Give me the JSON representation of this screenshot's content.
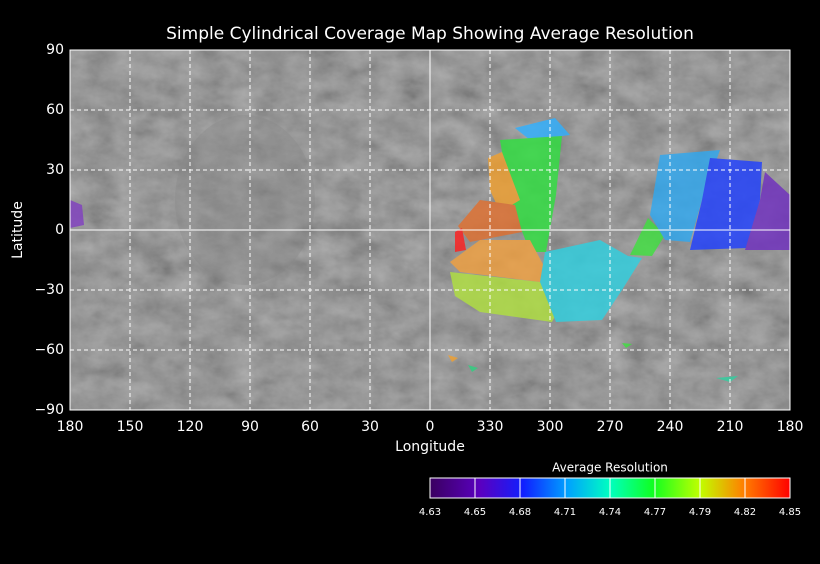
{
  "title": "Simple Cylindrical Coverage Map Showing Average Resolution",
  "x_label": "Longitude",
  "y_label": "Latitude",
  "lon_ticks": [
    180,
    150,
    120,
    90,
    60,
    30,
    0,
    330,
    300,
    270,
    240,
    210,
    180
  ],
  "lat_ticks": [
    "90",
    "60",
    "30",
    "0",
    "−30",
    "−60",
    "−90"
  ],
  "colorbar": {
    "title": "Average Resolution",
    "labels": [
      4.63,
      4.65,
      4.68,
      4.71,
      4.74,
      4.77,
      4.79,
      4.82,
      4.85
    ]
  }
}
